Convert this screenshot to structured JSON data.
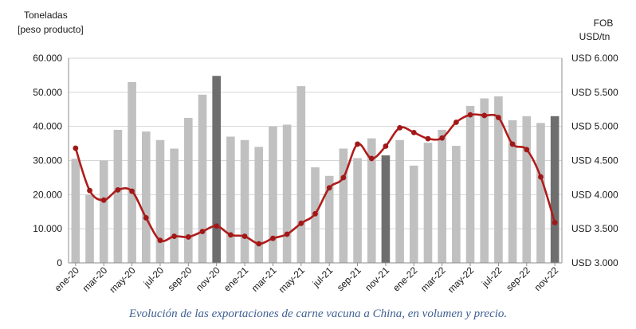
{
  "caption": "Evolución de las exportaciones de carne vacuna a China, en volumen y precio.",
  "chart_data": {
    "type": "bar+line",
    "y_left_title": [
      "Toneladas",
      "[peso producto]"
    ],
    "y_right_title": [
      "FOB",
      "USD/tn"
    ],
    "y_left_ticks": [
      "0",
      "10.000",
      "20.000",
      "30.000",
      "40.000",
      "50.000",
      "60.000"
    ],
    "y_right_ticks": [
      "USD 3.000",
      "USD 3.500",
      "USD 4.000",
      "USD 4.500",
      "USD 5.000",
      "USD 5.500",
      "USD 6.000"
    ],
    "ylim_left": [
      0,
      60000
    ],
    "ylim_right": [
      3000,
      6000
    ],
    "grid": "horizontal",
    "x_tick_labels": [
      "ene-20",
      "mar-20",
      "may-20",
      "jul-20",
      "sep-20",
      "nov-20",
      "ene-21",
      "mar-21",
      "may-21",
      "jul-21",
      "sep-21",
      "nov-21",
      "ene-22",
      "mar-22",
      "may-22",
      "jul-22",
      "sep-22",
      "nov-22"
    ],
    "categories": [
      "ene-20",
      "feb-20",
      "mar-20",
      "abr-20",
      "may-20",
      "jun-20",
      "jul-20",
      "ago-20",
      "sep-20",
      "oct-20",
      "nov-20",
      "dic-20",
      "ene-21",
      "feb-21",
      "mar-21",
      "abr-21",
      "may-21",
      "jun-21",
      "jul-21",
      "ago-21",
      "sep-21",
      "oct-21",
      "nov-21",
      "dic-21",
      "ene-22",
      "feb-22",
      "mar-22",
      "abr-22",
      "may-22",
      "jun-22",
      "jul-22",
      "ago-22",
      "sep-22",
      "oct-22",
      "nov-22"
    ],
    "highlighted": [
      "nov-20",
      "nov-21",
      "nov-22"
    ],
    "colors": {
      "bar": "#c0c0c0",
      "bar_highlight": "#6e6e6e",
      "line": "#b01c1c",
      "marker": "#a01818",
      "grid": "#d6d6d6"
    },
    "series": [
      {
        "type": "bar",
        "axis": "left",
        "values": [
          30500,
          20000,
          30000,
          39000,
          53000,
          38500,
          36000,
          33500,
          42500,
          49300,
          54800,
          37000,
          36000,
          34000,
          40000,
          40500,
          51800,
          28000,
          25500,
          33500,
          30700,
          36500,
          31500,
          36000,
          28500,
          35200,
          39000,
          34300,
          46000,
          48200,
          48800,
          41800,
          43000,
          41000,
          43000
        ]
      },
      {
        "type": "line",
        "axis": "right",
        "values": [
          4680,
          4060,
          3920,
          4070,
          4050,
          3660,
          3330,
          3390,
          3380,
          3460,
          3540,
          3410,
          3390,
          3280,
          3360,
          3420,
          3580,
          3720,
          4100,
          4250,
          4740,
          4530,
          4710,
          4980,
          4910,
          4820,
          4830,
          5060,
          5170,
          5160,
          5130,
          4740,
          4660,
          4260,
          3590
        ]
      }
    ]
  }
}
